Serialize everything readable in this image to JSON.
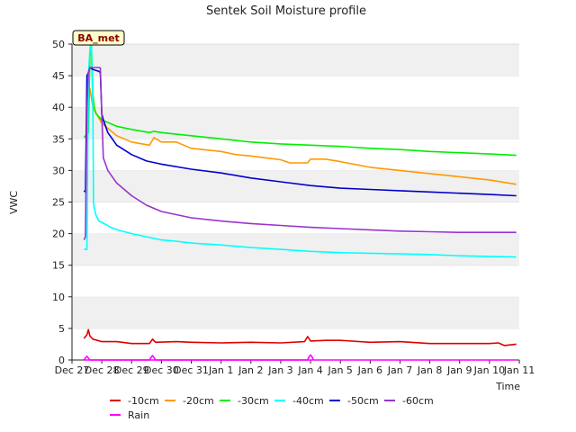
{
  "chart_data": {
    "type": "line",
    "title": "Sentek Soil Moisture profile",
    "xlabel": "Time",
    "ylabel": "VWC",
    "station_label": "BA_met",
    "x_tick_labels": [
      "Dec 27",
      "Dec 28",
      "Dec 29",
      "Dec 30",
      "Dec 31",
      "Jan 1",
      "Jan 2",
      "Jan 3",
      "Jan 4",
      "Jan 5",
      "Jan 6",
      "Jan 7",
      "Jan 8",
      "Jan 9",
      "Jan 10",
      "Jan 11"
    ],
    "xlim": [
      0,
      15
    ],
    "ylim": [
      0,
      50
    ],
    "y_ticks": [
      0,
      5,
      10,
      15,
      20,
      25,
      30,
      35,
      40,
      45,
      50
    ],
    "grid": "horizontal bands",
    "legend_position": "bottom",
    "series": [
      {
        "name": "-10cm",
        "color": "#dd0000",
        "x": [
          0.4,
          0.5,
          0.55,
          0.6,
          0.7,
          1.0,
          1.5,
          2.0,
          2.6,
          2.7,
          2.8,
          3.5,
          4.0,
          5.0,
          6.0,
          7.0,
          7.8,
          7.9,
          8.0,
          8.5,
          9.0,
          10.0,
          11.0,
          12.0,
          13.0,
          14.0,
          14.3,
          14.5,
          14.9
        ],
        "y": [
          3.4,
          4.0,
          4.8,
          3.8,
          3.3,
          2.9,
          2.9,
          2.6,
          2.6,
          3.3,
          2.8,
          2.9,
          2.8,
          2.7,
          2.8,
          2.7,
          2.9,
          3.7,
          3.0,
          3.1,
          3.1,
          2.8,
          2.9,
          2.6,
          2.6,
          2.6,
          2.7,
          2.3,
          2.5
        ]
      },
      {
        "name": "-20cm",
        "color": "#ff9900",
        "x": [
          0.5,
          0.6,
          0.7,
          1.0,
          1.5,
          2.0,
          2.6,
          2.75,
          3.0,
          3.5,
          4.0,
          5.0,
          5.5,
          6.0,
          6.5,
          7.0,
          7.3,
          7.9,
          8.0,
          8.5,
          9.0,
          10.0,
          11.0,
          12.0,
          13.0,
          14.0,
          14.9
        ],
        "y": [
          38,
          43,
          40,
          37.5,
          35.5,
          34.5,
          34,
          35.2,
          34.5,
          34.5,
          33.5,
          33,
          32.5,
          32.3,
          32.0,
          31.7,
          31.2,
          31.2,
          31.8,
          31.8,
          31.4,
          30.5,
          30,
          29.5,
          29,
          28.5,
          27.8
        ]
      },
      {
        "name": "-30cm",
        "color": "#00ee00",
        "x": [
          0.4,
          0.55,
          0.6,
          0.65,
          0.7,
          0.75,
          0.8,
          1.0,
          1.5,
          2.0,
          2.6,
          2.75,
          3.0,
          4.0,
          5.0,
          6.0,
          7.0,
          8.0,
          9.0,
          10.0,
          11.0,
          12.0,
          13.0,
          14.0,
          14.9
        ],
        "y": [
          35.2,
          36,
          48,
          50,
          42,
          40,
          39,
          38,
          37,
          36.5,
          36,
          36.2,
          36,
          35.5,
          35,
          34.5,
          34.2,
          34,
          33.8,
          33.5,
          33.3,
          33,
          32.8,
          32.6,
          32.4
        ]
      },
      {
        "name": "-40cm",
        "color": "#00ffff",
        "x": [
          0.4,
          0.5,
          0.55,
          0.6,
          0.62,
          0.65,
          0.7,
          0.72,
          0.75,
          0.8,
          0.9,
          1.0,
          1.3,
          1.6,
          2.0,
          2.5,
          3.0,
          3.5,
          4.0,
          5.0,
          6.0,
          7.0,
          8.0,
          9.0,
          10.0,
          11.0,
          12.0,
          13.0,
          14.0,
          14.9
        ],
        "y": [
          17.5,
          17.5,
          45,
          49,
          50,
          49.5,
          40,
          25,
          24,
          23,
          22,
          21.8,
          21,
          20.5,
          20,
          19.5,
          19,
          18.8,
          18.5,
          18.2,
          17.8,
          17.5,
          17.2,
          17,
          16.9,
          16.8,
          16.7,
          16.5,
          16.4,
          16.3
        ]
      },
      {
        "name": "-50cm",
        "color": "#0000cc",
        "x": [
          0.4,
          0.45,
          0.5,
          0.55,
          0.6,
          0.7,
          0.9,
          0.95,
          1.0,
          1.05,
          1.2,
          1.5,
          2.0,
          2.5,
          3.0,
          4.0,
          5.0,
          6.0,
          7.0,
          8.0,
          9.0,
          10.0,
          11.0,
          12.0,
          13.0,
          14.0,
          14.9
        ],
        "y": [
          26.8,
          26.6,
          45,
          45.5,
          46.3,
          46,
          45.7,
          45.5,
          39,
          38,
          36,
          34,
          32.5,
          31.5,
          31,
          30.2,
          29.6,
          28.8,
          28.2,
          27.6,
          27.2,
          27,
          26.8,
          26.6,
          26.4,
          26.2,
          26.0
        ]
      },
      {
        "name": "-60cm",
        "color": "#9933cc",
        "x": [
          0.4,
          0.45,
          0.5,
          0.55,
          0.6,
          0.7,
          0.9,
          0.95,
          1.0,
          1.05,
          1.2,
          1.5,
          2.0,
          2.5,
          3.0,
          4.0,
          5.0,
          6.0,
          7.0,
          8.0,
          9.0,
          10.0,
          11.0,
          12.0,
          13.0,
          14.0,
          14.9
        ],
        "y": [
          19,
          19.5,
          40,
          45.5,
          46.3,
          46.3,
          46.3,
          46.2,
          39,
          32,
          30,
          28,
          26,
          24.5,
          23.5,
          22.5,
          22,
          21.6,
          21.3,
          21,
          20.8,
          20.6,
          20.4,
          20.3,
          20.2,
          20.2,
          20.2
        ]
      },
      {
        "name": "Rain",
        "color": "#ff00ff",
        "x": [
          0.4,
          0.45,
          0.5,
          0.55,
          0.6,
          2.6,
          2.65,
          2.7,
          2.75,
          2.8,
          7.9,
          7.95,
          8.0,
          8.05,
          8.1
        ],
        "y": [
          0,
          0.3,
          0.6,
          0.3,
          0,
          0,
          0.4,
          0.7,
          0.4,
          0,
          0,
          0.5,
          0.8,
          0.5,
          0
        ]
      }
    ]
  }
}
